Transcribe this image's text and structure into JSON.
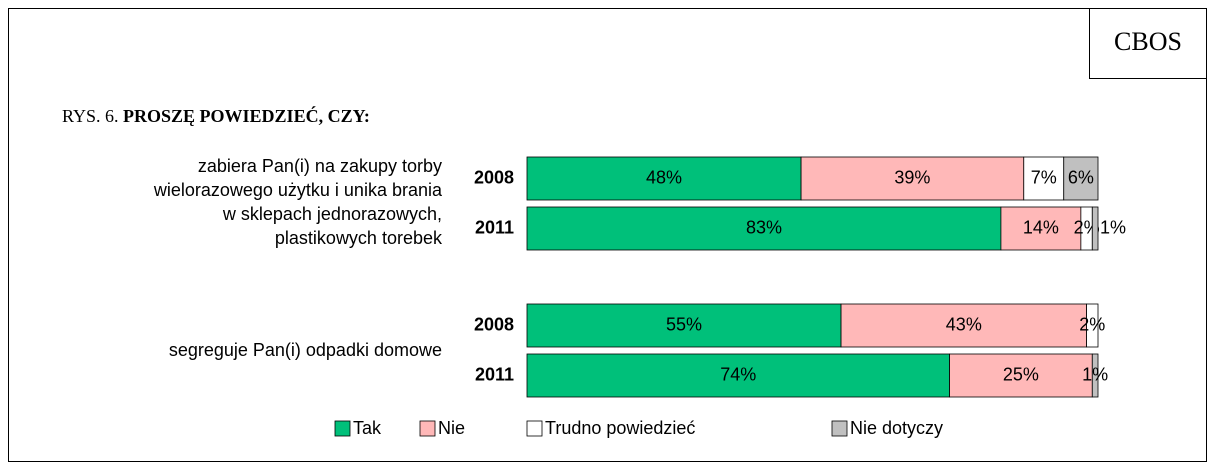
{
  "chart_data": {
    "type": "stacked-bar-horizontal",
    "logo_text": "CBOS",
    "figure_label": "RYS. 6.",
    "title": "PROSZĘ POWIEDZIEĆ, CZY:",
    "groups": [
      {
        "label": [
          "zabiera Pan(i) na zakupy torby",
          "wielorazowego użytku i unika brania",
          "w sklepach jednorazowych,",
          "plastikowych torebek"
        ]
      },
      {
        "label": [
          "segreguje Pan(i) odpadki domowe"
        ]
      }
    ],
    "categories": [
      "2008",
      "2011",
      "2008",
      "2011"
    ],
    "xlim": [
      0,
      100
    ],
    "series": [
      {
        "name": "Tak",
        "color": "#00c07a",
        "values": [
          48,
          83,
          55,
          74
        ],
        "value_labels": [
          "48%",
          "83%",
          "55%",
          "74%"
        ]
      },
      {
        "name": "Nie",
        "color": "#ffb8b8",
        "values": [
          39,
          14,
          43,
          25
        ],
        "value_labels": [
          "39%",
          "14%",
          "43%",
          "25%"
        ]
      },
      {
        "name": "Trudno powiedzieć",
        "color": "#ffffff",
        "values": [
          7,
          2,
          2,
          null
        ],
        "value_labels": [
          "7%",
          "2%",
          "2%",
          null
        ]
      },
      {
        "name": "Nie dotyczy",
        "color": "#c0c0c0",
        "values": [
          6,
          1,
          null,
          1
        ],
        "value_labels": [
          "6%",
          "1%",
          null,
          "1%"
        ]
      }
    ]
  }
}
